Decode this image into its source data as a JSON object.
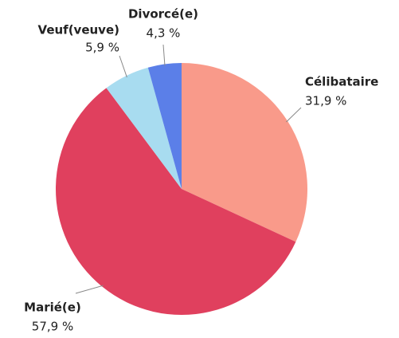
{
  "chart_data": {
    "type": "pie",
    "categories": [
      "Célibataire",
      "Marié(e)",
      "Veuf(veuve)",
      "Divorcé(e)"
    ],
    "values": [
      31.9,
      57.9,
      5.9,
      4.3
    ],
    "value_labels": [
      "31,9 %",
      "57,9 %",
      "5,9 %",
      "4,3 %"
    ],
    "colors": [
      "#f99a8a",
      "#e0405e",
      "#a8dcf0",
      "#5b7fe8"
    ]
  }
}
